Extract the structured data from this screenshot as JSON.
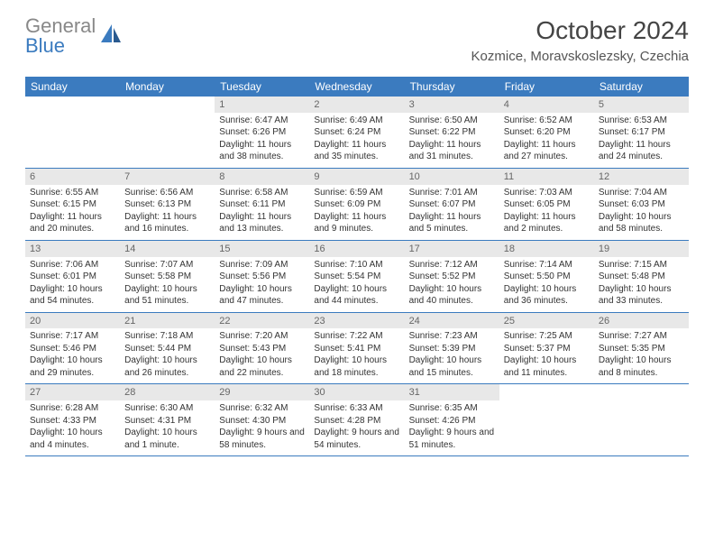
{
  "logo": {
    "text_gray": "General",
    "text_blue": "Blue"
  },
  "title": "October 2024",
  "location": "Kozmice, Moravskoslezsky, Czechia",
  "colors": {
    "header_bg": "#3b7bbf",
    "header_text": "#ffffff",
    "border": "#3b7bbf",
    "daynum_bg": "#e8e8e8",
    "text": "#333333",
    "logo_gray": "#888888",
    "logo_blue": "#3b7bbf"
  },
  "day_names": [
    "Sunday",
    "Monday",
    "Tuesday",
    "Wednesday",
    "Thursday",
    "Friday",
    "Saturday"
  ],
  "weeks": [
    [
      {
        "num": "",
        "info": ""
      },
      {
        "num": "",
        "info": ""
      },
      {
        "num": "1",
        "sunrise": "Sunrise: 6:47 AM",
        "sunset": "Sunset: 6:26 PM",
        "daylight": "Daylight: 11 hours and 38 minutes."
      },
      {
        "num": "2",
        "sunrise": "Sunrise: 6:49 AM",
        "sunset": "Sunset: 6:24 PM",
        "daylight": "Daylight: 11 hours and 35 minutes."
      },
      {
        "num": "3",
        "sunrise": "Sunrise: 6:50 AM",
        "sunset": "Sunset: 6:22 PM",
        "daylight": "Daylight: 11 hours and 31 minutes."
      },
      {
        "num": "4",
        "sunrise": "Sunrise: 6:52 AM",
        "sunset": "Sunset: 6:20 PM",
        "daylight": "Daylight: 11 hours and 27 minutes."
      },
      {
        "num": "5",
        "sunrise": "Sunrise: 6:53 AM",
        "sunset": "Sunset: 6:17 PM",
        "daylight": "Daylight: 11 hours and 24 minutes."
      }
    ],
    [
      {
        "num": "6",
        "sunrise": "Sunrise: 6:55 AM",
        "sunset": "Sunset: 6:15 PM",
        "daylight": "Daylight: 11 hours and 20 minutes."
      },
      {
        "num": "7",
        "sunrise": "Sunrise: 6:56 AM",
        "sunset": "Sunset: 6:13 PM",
        "daylight": "Daylight: 11 hours and 16 minutes."
      },
      {
        "num": "8",
        "sunrise": "Sunrise: 6:58 AM",
        "sunset": "Sunset: 6:11 PM",
        "daylight": "Daylight: 11 hours and 13 minutes."
      },
      {
        "num": "9",
        "sunrise": "Sunrise: 6:59 AM",
        "sunset": "Sunset: 6:09 PM",
        "daylight": "Daylight: 11 hours and 9 minutes."
      },
      {
        "num": "10",
        "sunrise": "Sunrise: 7:01 AM",
        "sunset": "Sunset: 6:07 PM",
        "daylight": "Daylight: 11 hours and 5 minutes."
      },
      {
        "num": "11",
        "sunrise": "Sunrise: 7:03 AM",
        "sunset": "Sunset: 6:05 PM",
        "daylight": "Daylight: 11 hours and 2 minutes."
      },
      {
        "num": "12",
        "sunrise": "Sunrise: 7:04 AM",
        "sunset": "Sunset: 6:03 PM",
        "daylight": "Daylight: 10 hours and 58 minutes."
      }
    ],
    [
      {
        "num": "13",
        "sunrise": "Sunrise: 7:06 AM",
        "sunset": "Sunset: 6:01 PM",
        "daylight": "Daylight: 10 hours and 54 minutes."
      },
      {
        "num": "14",
        "sunrise": "Sunrise: 7:07 AM",
        "sunset": "Sunset: 5:58 PM",
        "daylight": "Daylight: 10 hours and 51 minutes."
      },
      {
        "num": "15",
        "sunrise": "Sunrise: 7:09 AM",
        "sunset": "Sunset: 5:56 PM",
        "daylight": "Daylight: 10 hours and 47 minutes."
      },
      {
        "num": "16",
        "sunrise": "Sunrise: 7:10 AM",
        "sunset": "Sunset: 5:54 PM",
        "daylight": "Daylight: 10 hours and 44 minutes."
      },
      {
        "num": "17",
        "sunrise": "Sunrise: 7:12 AM",
        "sunset": "Sunset: 5:52 PM",
        "daylight": "Daylight: 10 hours and 40 minutes."
      },
      {
        "num": "18",
        "sunrise": "Sunrise: 7:14 AM",
        "sunset": "Sunset: 5:50 PM",
        "daylight": "Daylight: 10 hours and 36 minutes."
      },
      {
        "num": "19",
        "sunrise": "Sunrise: 7:15 AM",
        "sunset": "Sunset: 5:48 PM",
        "daylight": "Daylight: 10 hours and 33 minutes."
      }
    ],
    [
      {
        "num": "20",
        "sunrise": "Sunrise: 7:17 AM",
        "sunset": "Sunset: 5:46 PM",
        "daylight": "Daylight: 10 hours and 29 minutes."
      },
      {
        "num": "21",
        "sunrise": "Sunrise: 7:18 AM",
        "sunset": "Sunset: 5:44 PM",
        "daylight": "Daylight: 10 hours and 26 minutes."
      },
      {
        "num": "22",
        "sunrise": "Sunrise: 7:20 AM",
        "sunset": "Sunset: 5:43 PM",
        "daylight": "Daylight: 10 hours and 22 minutes."
      },
      {
        "num": "23",
        "sunrise": "Sunrise: 7:22 AM",
        "sunset": "Sunset: 5:41 PM",
        "daylight": "Daylight: 10 hours and 18 minutes."
      },
      {
        "num": "24",
        "sunrise": "Sunrise: 7:23 AM",
        "sunset": "Sunset: 5:39 PM",
        "daylight": "Daylight: 10 hours and 15 minutes."
      },
      {
        "num": "25",
        "sunrise": "Sunrise: 7:25 AM",
        "sunset": "Sunset: 5:37 PM",
        "daylight": "Daylight: 10 hours and 11 minutes."
      },
      {
        "num": "26",
        "sunrise": "Sunrise: 7:27 AM",
        "sunset": "Sunset: 5:35 PM",
        "daylight": "Daylight: 10 hours and 8 minutes."
      }
    ],
    [
      {
        "num": "27",
        "sunrise": "Sunrise: 6:28 AM",
        "sunset": "Sunset: 4:33 PM",
        "daylight": "Daylight: 10 hours and 4 minutes."
      },
      {
        "num": "28",
        "sunrise": "Sunrise: 6:30 AM",
        "sunset": "Sunset: 4:31 PM",
        "daylight": "Daylight: 10 hours and 1 minute."
      },
      {
        "num": "29",
        "sunrise": "Sunrise: 6:32 AM",
        "sunset": "Sunset: 4:30 PM",
        "daylight": "Daylight: 9 hours and 58 minutes."
      },
      {
        "num": "30",
        "sunrise": "Sunrise: 6:33 AM",
        "sunset": "Sunset: 4:28 PM",
        "daylight": "Daylight: 9 hours and 54 minutes."
      },
      {
        "num": "31",
        "sunrise": "Sunrise: 6:35 AM",
        "sunset": "Sunset: 4:26 PM",
        "daylight": "Daylight: 9 hours and 51 minutes."
      },
      {
        "num": "",
        "info": ""
      },
      {
        "num": "",
        "info": ""
      }
    ]
  ]
}
